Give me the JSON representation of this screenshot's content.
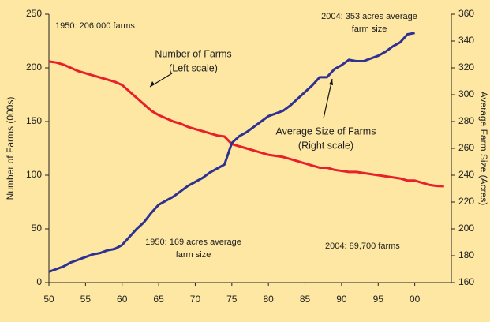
{
  "chart_data": {
    "type": "line",
    "y_label": "Number of Farms (000s)",
    "y2_label": "Average Farm Size (Acres)",
    "x": [
      1950,
      1951,
      1952,
      1953,
      1954,
      1955,
      1956,
      1957,
      1958,
      1959,
      1960,
      1961,
      1962,
      1963,
      1964,
      1965,
      1966,
      1967,
      1968,
      1969,
      1970,
      1971,
      1972,
      1973,
      1974,
      1975,
      1976,
      1977,
      1978,
      1979,
      1980,
      1981,
      1982,
      1983,
      1984,
      1985,
      1986,
      1987,
      1988,
      1989,
      1990,
      1991,
      1992,
      1993,
      1994,
      1995,
      1996,
      1997,
      1998,
      1999,
      2000,
      2001,
      2002,
      2003,
      2004
    ],
    "series": [
      {
        "name": "Number of Farms",
        "color": "#e8202a",
        "axis": "y",
        "values": [
          206,
          205,
          203,
          200,
          197,
          195,
          193,
          191,
          189,
          187,
          184,
          178,
          172,
          166,
          160,
          156,
          153,
          150,
          148,
          145,
          143,
          141,
          139,
          137,
          136,
          129,
          127,
          125,
          123,
          121,
          119,
          118,
          117,
          115,
          113,
          111,
          109,
          107,
          107,
          105,
          104,
          103,
          103,
          102,
          101,
          100,
          99,
          98,
          97,
          95,
          95,
          93,
          91,
          90,
          89.7
        ]
      },
      {
        "name": "Average Size of Farms",
        "color": "#2e3192",
        "axis": "y2",
        "values": [
          168,
          170,
          172,
          175,
          177,
          179,
          181,
          182,
          184,
          185,
          188,
          194,
          200,
          205,
          212,
          218,
          221,
          224,
          228,
          232,
          235,
          238,
          242,
          245,
          248,
          264,
          269,
          272,
          276,
          280,
          284,
          286,
          288,
          292,
          297,
          302,
          307,
          313,
          313,
          319,
          322,
          326,
          325,
          325,
          327,
          329,
          332,
          336,
          339,
          345,
          346,
          null,
          null,
          null,
          null
        ]
      }
    ],
    "xlim": [
      1950,
      2005
    ],
    "xticks": [
      {
        "value": 1950,
        "label": "50"
      },
      {
        "value": 1955,
        "label": "55"
      },
      {
        "value": 1960,
        "label": "60"
      },
      {
        "value": 1965,
        "label": "65"
      },
      {
        "value": 1970,
        "label": "70"
      },
      {
        "value": 1975,
        "label": "75"
      },
      {
        "value": 1980,
        "label": "80"
      },
      {
        "value": 1985,
        "label": "85"
      },
      {
        "value": 1990,
        "label": "90"
      },
      {
        "value": 1995,
        "label": "95"
      },
      {
        "value": 2000,
        "label": "00"
      }
    ],
    "ylim": [
      0,
      250
    ],
    "yticks": [
      0,
      50,
      100,
      150,
      200,
      250
    ],
    "y2lim": [
      160,
      360
    ],
    "y2ticks": [
      160,
      180,
      200,
      220,
      240,
      260,
      280,
      300,
      320,
      340,
      360
    ],
    "annotations": [
      {
        "lines": [
          "1950: 206,000 farms"
        ]
      },
      {
        "lines": [
          "Number of Farms",
          "(Left scale)"
        ]
      },
      {
        "lines": [
          "2004: 353 acres average",
          "farm size"
        ]
      },
      {
        "lines": [
          "Average Size of Farms",
          "(Right scale)"
        ]
      },
      {
        "lines": [
          "1950: 169 acres average",
          "farm size"
        ]
      },
      {
        "lines": [
          "2004: 89,700 farms"
        ]
      }
    ]
  }
}
